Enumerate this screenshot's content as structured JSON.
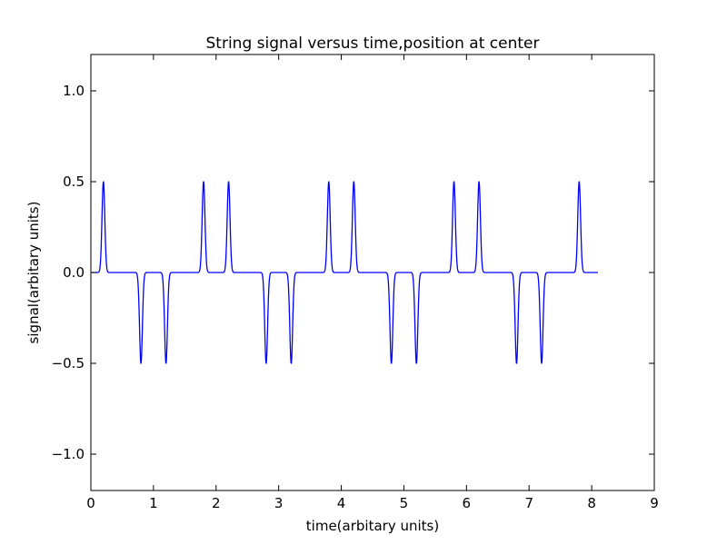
{
  "chart_data": {
    "type": "line",
    "title": "String signal versus time,position at center",
    "xlabel": "time(arbitary units)",
    "ylabel": "signal(arbitary units)",
    "xlim": [
      0,
      9
    ],
    "ylim": [
      -1.2,
      1.2
    ],
    "xticks": [
      0,
      1,
      2,
      3,
      4,
      5,
      6,
      7,
      8,
      9
    ],
    "xtick_labels": [
      "0",
      "1",
      "2",
      "3",
      "4",
      "5",
      "6",
      "7",
      "8",
      "9"
    ],
    "yticks": [
      -1.0,
      -0.5,
      0.0,
      0.5,
      1.0
    ],
    "ytick_labels": [
      "−1.0",
      "−0.5",
      "0.0",
      "0.5",
      "1.0"
    ],
    "grid": false,
    "series": [
      {
        "color": "#0000ff",
        "x_start": 0.0,
        "x_end": 8.1,
        "baseline": 0.0,
        "pulse_width": 0.032,
        "pulses": [
          {
            "t": 0.2,
            "amp": 0.5
          },
          {
            "t": 0.8,
            "amp": -0.5
          },
          {
            "t": 1.2,
            "amp": -0.5
          },
          {
            "t": 1.8,
            "amp": 0.5
          },
          {
            "t": 2.2,
            "amp": 0.5
          },
          {
            "t": 2.8,
            "amp": -0.5
          },
          {
            "t": 3.2,
            "amp": -0.5
          },
          {
            "t": 3.8,
            "amp": 0.5
          },
          {
            "t": 4.2,
            "amp": 0.5
          },
          {
            "t": 4.8,
            "amp": -0.5
          },
          {
            "t": 5.2,
            "amp": -0.5
          },
          {
            "t": 5.8,
            "amp": 0.5
          },
          {
            "t": 6.2,
            "amp": 0.5
          },
          {
            "t": 6.8,
            "amp": -0.5
          },
          {
            "t": 7.2,
            "amp": -0.5
          },
          {
            "t": 7.8,
            "amp": 0.5
          }
        ]
      }
    ]
  }
}
